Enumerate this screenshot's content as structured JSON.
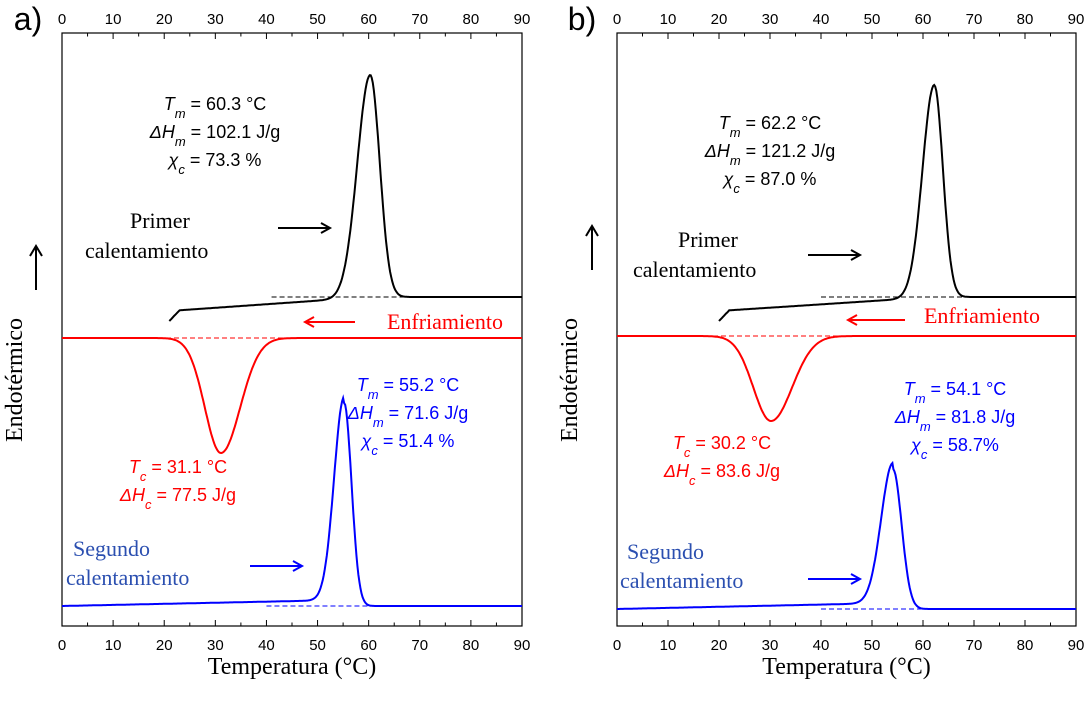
{
  "chart_data": [
    {
      "panel_label": "a)",
      "type": "line",
      "xlabel": "Temperatura (°C)",
      "ylabel": "Endotérmico",
      "xlim": [
        0,
        90
      ],
      "xticks": [
        0,
        10,
        20,
        30,
        40,
        50,
        60,
        70,
        80,
        90
      ],
      "top_axis_ticks": true,
      "series": [
        {
          "name": "Primer calentamiento",
          "color": "#000000",
          "onset": 21,
          "end": 90,
          "peak_x": 60.3,
          "kind": "endotherm"
        },
        {
          "name": "Enfriamiento",
          "color": "#ff0000",
          "onset": 0,
          "end": 90,
          "peak_x": 31.1,
          "kind": "exotherm"
        },
        {
          "name": "Segundo calentamiento",
          "color": "#0000ff",
          "onset": 0,
          "end": 90,
          "peak_x": 55.2,
          "kind": "endotherm"
        }
      ],
      "annotations": {
        "first_heating": {
          "tm_label": "T",
          "tm_sub": "m",
          "tm_value": " = 60.3 °C",
          "dh_label": "ΔH",
          "dh_sub": "m",
          "dh_value": " = 102.1 J/g",
          "xc_label": "χ",
          "xc_sub": "c",
          "xc_value": " = 73.3 %"
        },
        "cooling": {
          "tc_label": "T",
          "tc_sub": "c",
          "tc_value": " = 31.1 °C",
          "dh_label": "ΔH",
          "dh_sub": "c",
          "dh_value": " = 77.5 J/g"
        },
        "second_heating": {
          "tm_label": "T",
          "tm_sub": "m",
          "tm_value": " = 55.2 °C",
          "dh_label": "ΔH",
          "dh_sub": "m",
          "dh_value": " = 71.6 J/g",
          "xc_label": "χ",
          "xc_sub": "c",
          "xc_value": " = 51.4 %"
        }
      },
      "curve_labels": {
        "first_heating": [
          "Primer",
          "calentamiento"
        ],
        "cooling": "Enfriamiento",
        "second_heating": [
          "Segundo",
          "calentamiento"
        ]
      }
    },
    {
      "panel_label": "b)",
      "type": "line",
      "xlabel": "Temperatura (°C)",
      "ylabel": "Endotérmico",
      "xlim": [
        0,
        90
      ],
      "xticks": [
        0,
        10,
        20,
        30,
        40,
        50,
        60,
        70,
        80,
        90
      ],
      "top_axis_ticks": true,
      "series": [
        {
          "name": "Primer calentamiento",
          "color": "#000000",
          "onset": 20,
          "end": 90,
          "peak_x": 62.2,
          "kind": "endotherm"
        },
        {
          "name": "Enfriamiento",
          "color": "#ff0000",
          "onset": 0,
          "end": 90,
          "peak_x": 30.2,
          "kind": "exotherm"
        },
        {
          "name": "Segundo calentamiento",
          "color": "#0000ff",
          "onset": 0,
          "end": 90,
          "peak_x": 54.1,
          "kind": "endotherm"
        }
      ],
      "annotations": {
        "first_heating": {
          "tm_label": "T",
          "tm_sub": "m",
          "tm_value": " = 62.2 °C",
          "dh_label": "ΔH",
          "dh_sub": "m",
          "dh_value": " = 121.2 J/g",
          "xc_label": "χ",
          "xc_sub": "c",
          "xc_value": " = 87.0 %"
        },
        "cooling": {
          "tc_label": "T",
          "tc_sub": "c",
          "tc_value": " = 30.2 °C",
          "dh_label": "ΔH",
          "dh_sub": "c",
          "dh_value": " = 83.6 J/g"
        },
        "second_heating": {
          "tm_label": "T",
          "tm_sub": "m",
          "tm_value": " = 54.1 °C",
          "dh_label": "ΔH",
          "dh_sub": "m",
          "dh_value": " = 81.8 J/g",
          "xc_label": "χ",
          "xc_sub": "c",
          "xc_value": " = 58.7%"
        }
      },
      "curve_labels": {
        "first_heating": [
          "Primer",
          "calentamiento"
        ],
        "cooling": "Enfriamiento",
        "second_heating": [
          "Segundo",
          "calentamiento"
        ]
      }
    }
  ]
}
